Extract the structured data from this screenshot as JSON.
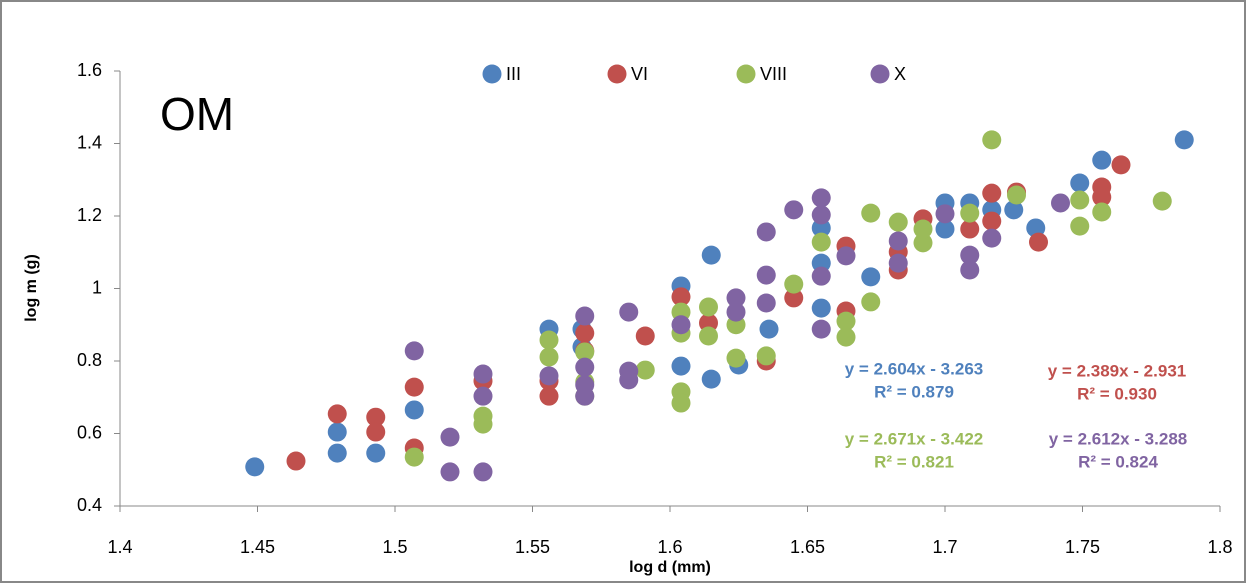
{
  "chart_data": {
    "type": "scatter",
    "label": "OM",
    "xlabel": "log d (mm)",
    "ylabel": "log m (g)",
    "xlim": [
      1.4,
      1.8
    ],
    "xticks": [
      1.4,
      1.45,
      1.5,
      1.55,
      1.6,
      1.65,
      1.7,
      1.75,
      1.8
    ],
    "ylim": [
      0.4,
      1.6
    ],
    "yticks": [
      0.4,
      0.6,
      0.8,
      1,
      1.2,
      1.4,
      1.6
    ],
    "legend": "top",
    "series": [
      {
        "name": "III",
        "color": "#4f81bd",
        "equation": "y = 2.604x - 3.263",
        "r2": "R² = 0.879",
        "x": [
          1.449,
          1.479,
          1.479,
          1.493,
          1.507,
          1.556,
          1.568,
          1.568,
          1.604,
          1.604,
          1.615,
          1.615,
          1.625,
          1.636,
          1.655,
          1.655,
          1.655,
          1.673,
          1.7,
          1.7,
          1.709,
          1.717,
          1.725,
          1.733,
          1.749,
          1.757,
          1.787
        ],
        "values": [
          0.508,
          0.546,
          0.604,
          0.546,
          0.665,
          0.888,
          0.888,
          0.839,
          1.007,
          0.786,
          1.092,
          0.75,
          0.789,
          0.888,
          1.167,
          1.07,
          0.946,
          1.032,
          1.164,
          1.236,
          1.236,
          1.217,
          1.217,
          1.167,
          1.291,
          1.354,
          1.41
        ]
      },
      {
        "name": "VI",
        "color": "#c0504d",
        "equation": "y = 2.389x - 2.931",
        "r2": "R² = 0.930",
        "x": [
          1.464,
          1.479,
          1.493,
          1.493,
          1.507,
          1.507,
          1.532,
          1.556,
          1.556,
          1.569,
          1.569,
          1.591,
          1.604,
          1.614,
          1.635,
          1.645,
          1.664,
          1.664,
          1.683,
          1.683,
          1.692,
          1.709,
          1.717,
          1.717,
          1.726,
          1.734,
          1.757,
          1.757,
          1.764
        ],
        "values": [
          0.524,
          0.654,
          0.645,
          0.604,
          0.728,
          0.56,
          0.745,
          0.703,
          0.745,
          0.877,
          0.828,
          0.869,
          0.977,
          0.905,
          0.8,
          0.974,
          1.117,
          0.938,
          1.051,
          1.101,
          1.192,
          1.164,
          1.263,
          1.186,
          1.266,
          1.128,
          1.28,
          1.252,
          1.341
        ]
      },
      {
        "name": "VIII",
        "color": "#9bbb59",
        "equation": "y = 2.671x - 3.422",
        "r2": "R² = 0.821",
        "x": [
          1.507,
          1.532,
          1.532,
          1.556,
          1.556,
          1.569,
          1.569,
          1.569,
          1.591,
          1.604,
          1.604,
          1.604,
          1.604,
          1.614,
          1.614,
          1.624,
          1.624,
          1.635,
          1.645,
          1.655,
          1.664,
          1.664,
          1.673,
          1.673,
          1.683,
          1.692,
          1.692,
          1.709,
          1.717,
          1.726,
          1.749,
          1.749,
          1.757,
          1.779
        ],
        "values": [
          0.535,
          0.648,
          0.626,
          0.811,
          0.858,
          0.825,
          0.742,
          0.703,
          0.775,
          0.715,
          0.684,
          0.877,
          0.935,
          0.949,
          0.869,
          0.9,
          0.808,
          0.814,
          1.012,
          1.128,
          0.91,
          0.866,
          0.963,
          1.208,
          1.183,
          1.126,
          1.164,
          1.208,
          1.41,
          1.258,
          1.172,
          1.244,
          1.211,
          1.241
        ]
      },
      {
        "name": "X",
        "color": "#8064a2",
        "equation": "y = 2.612x - 3.288",
        "r2": "R² = 0.824",
        "x": [
          1.507,
          1.52,
          1.52,
          1.532,
          1.532,
          1.532,
          1.556,
          1.569,
          1.569,
          1.569,
          1.569,
          1.585,
          1.585,
          1.585,
          1.604,
          1.624,
          1.624,
          1.635,
          1.635,
          1.635,
          1.645,
          1.655,
          1.655,
          1.655,
          1.655,
          1.664,
          1.683,
          1.683,
          1.7,
          1.709,
          1.709,
          1.717,
          1.742
        ],
        "values": [
          0.828,
          0.59,
          0.494,
          0.494,
          0.703,
          0.764,
          0.759,
          0.734,
          0.703,
          0.924,
          0.783,
          0.935,
          0.772,
          0.748,
          0.9,
          0.974,
          0.935,
          1.156,
          1.037,
          0.96,
          1.217,
          1.25,
          1.203,
          0.888,
          1.034,
          1.09,
          1.131,
          1.07,
          1.206,
          1.051,
          1.092,
          1.139,
          1.236
        ]
      }
    ]
  }
}
